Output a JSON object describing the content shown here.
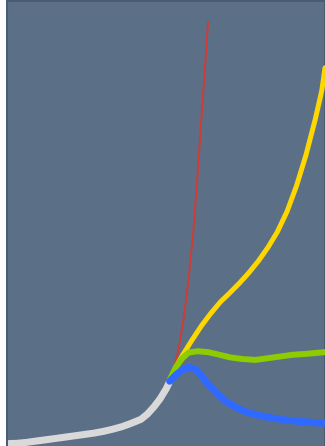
{
  "chart_data": {
    "type": "line",
    "title": "",
    "xlabel": "",
    "ylabel": "",
    "xlim": [
      0,
      100
    ],
    "ylim": [
      0,
      100
    ],
    "series": [
      {
        "key": "white",
        "color": "#d9d9d9",
        "stroke_width": 7,
        "points": [
          [
            0,
            1.0
          ],
          [
            3,
            1.1
          ],
          [
            6,
            1.3
          ],
          [
            9,
            1.6
          ],
          [
            12,
            1.9
          ],
          [
            15,
            2.2
          ],
          [
            18,
            2.5
          ],
          [
            21,
            2.8
          ],
          [
            24,
            3.1
          ],
          [
            27,
            3.4
          ],
          [
            30,
            3.8
          ],
          [
            33,
            4.3
          ],
          [
            36,
            4.9
          ],
          [
            39,
            5.7
          ],
          [
            42,
            6.6
          ],
          [
            44,
            7.8
          ],
          [
            46,
            9.4
          ],
          [
            48,
            11.3
          ],
          [
            50,
            13.7
          ],
          [
            51,
            15.3
          ]
        ]
      },
      {
        "key": "red",
        "color": "#cf3c35",
        "stroke_width": 2,
        "points": [
          [
            51,
            15.3
          ],
          [
            52.5,
            18.6
          ],
          [
            54,
            23.4
          ],
          [
            55.5,
            30.2
          ],
          [
            57,
            39.0
          ],
          [
            58.5,
            50.0
          ],
          [
            59.8,
            62.6
          ],
          [
            61,
            75.6
          ],
          [
            62.2,
            87.8
          ],
          [
            63.1,
            97.6
          ]
        ]
      },
      {
        "key": "yellow",
        "color": "#ffd700",
        "stroke_width": 5,
        "points": [
          [
            51,
            15.3
          ],
          [
            53,
            18.7
          ],
          [
            55,
            21.2
          ],
          [
            58,
            24.7
          ],
          [
            61,
            28.0
          ],
          [
            64,
            30.9
          ],
          [
            67,
            33.5
          ],
          [
            70,
            35.6
          ],
          [
            73,
            37.8
          ],
          [
            76,
            40.2
          ],
          [
            79,
            42.9
          ],
          [
            82,
            46.0
          ],
          [
            85,
            49.6
          ],
          [
            88,
            54.2
          ],
          [
            91,
            60.1
          ],
          [
            94,
            67.2
          ],
          [
            97,
            75.6
          ],
          [
            99,
            82.0
          ],
          [
            100,
            87.2
          ]
        ]
      },
      {
        "key": "green",
        "color": "#8ccc00",
        "stroke_width": 6,
        "points": [
          [
            51,
            15.6
          ],
          [
            53,
            18.6
          ],
          [
            55,
            20.6
          ],
          [
            57,
            21.9
          ],
          [
            60,
            22.2
          ],
          [
            63,
            22.0
          ],
          [
            66,
            21.5
          ],
          [
            70,
            20.8
          ],
          [
            74,
            20.4
          ],
          [
            78,
            20.2
          ],
          [
            82,
            20.6
          ],
          [
            86,
            21.0
          ],
          [
            90,
            21.4
          ],
          [
            94,
            21.6
          ],
          [
            97,
            21.8
          ],
          [
            100,
            22.0
          ]
        ]
      },
      {
        "key": "blue",
        "color": "#2f69ff",
        "stroke_width": 7,
        "points": [
          [
            51,
            15.3
          ],
          [
            53,
            16.8
          ],
          [
            55,
            17.9
          ],
          [
            57,
            18.5
          ],
          [
            59,
            18.1
          ],
          [
            61,
            16.6
          ],
          [
            63,
            14.7
          ],
          [
            66,
            12.4
          ],
          [
            69,
            10.6
          ],
          [
            72,
            9.3
          ],
          [
            75,
            8.3
          ],
          [
            78,
            7.7
          ],
          [
            81,
            7.2
          ],
          [
            84,
            6.8
          ],
          [
            87,
            6.5
          ],
          [
            90,
            6.2
          ],
          [
            94,
            6.0
          ],
          [
            97,
            5.8
          ],
          [
            100,
            5.7
          ]
        ]
      }
    ]
  }
}
